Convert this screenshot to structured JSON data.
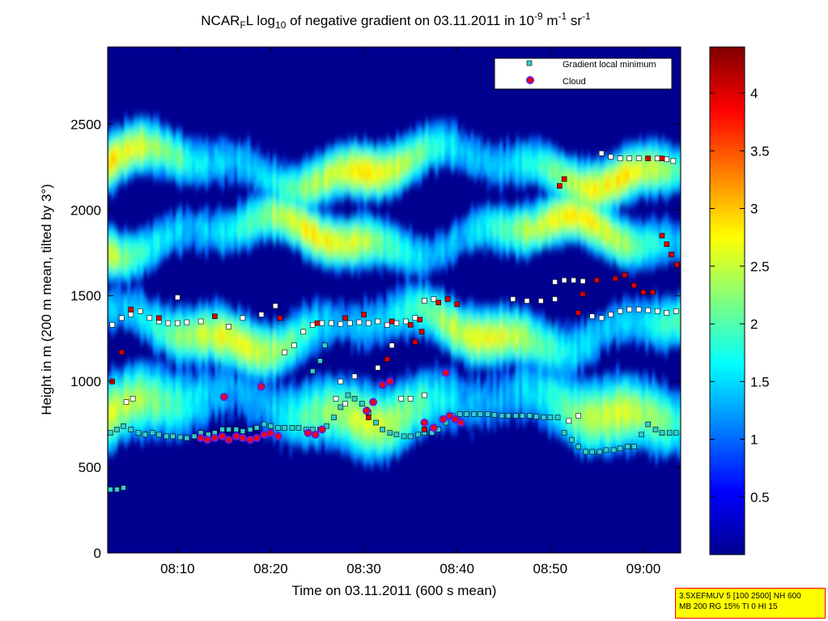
{
  "chart_data": {
    "type": "heatmap",
    "title": {
      "parts": [
        {
          "text": "NCAR",
          "style": "normal"
        },
        {
          "text": "F",
          "style": "sub"
        },
        {
          "text": "L log",
          "style": "normal"
        },
        {
          "text": "10",
          "style": "sub"
        },
        {
          "text": " of negative gradient on 03.11.2011 in 10",
          "style": "normal"
        },
        {
          "text": "-9",
          "style": "sup"
        },
        {
          "text": " m",
          "style": "normal"
        },
        {
          "text": "-1",
          "style": "sup"
        },
        {
          "text": " sr",
          "style": "normal"
        },
        {
          "text": "-1",
          "style": "sup"
        }
      ]
    },
    "xlabel": "Time on 03.11.2011 (600 s mean)",
    "ylabel": "Height in m (200 m mean, tilted by 3°)",
    "x_ticks": [
      {
        "minute": 10,
        "label": "08:10"
      },
      {
        "minute": 20,
        "label": "08:20"
      },
      {
        "minute": 30,
        "label": "08:30"
      },
      {
        "minute": 40,
        "label": "08:40"
      },
      {
        "minute": 50,
        "label": "08:50"
      },
      {
        "minute": 60,
        "label": "09:00"
      }
    ],
    "y_ticks": [
      0,
      500,
      1000,
      1500,
      2000,
      2500
    ],
    "xlim_minutes_after_0800": [
      2.5,
      64
    ],
    "ylim": [
      0,
      2950
    ],
    "colorbar": {
      "ticks": [
        {
          "value": 0.5,
          "label": "0.5"
        },
        {
          "value": 1,
          "label": "1"
        },
        {
          "value": 1.5,
          "label": "1.5"
        },
        {
          "value": 2,
          "label": "2"
        },
        {
          "value": 2.5,
          "label": "2.5"
        },
        {
          "value": 3,
          "label": "3"
        },
        {
          "value": 3.5,
          "label": "3.5"
        },
        {
          "value": 4,
          "label": "4"
        }
      ],
      "range": [
        0,
        4.4
      ],
      "colormap": "jet"
    },
    "legend": {
      "position": "top-right",
      "entries": [
        {
          "label": "Gradient local minimum",
          "marker": "square",
          "color": "#33cccc"
        },
        {
          "label": "Cloud",
          "marker": "circle",
          "color": "#ff0000"
        }
      ]
    },
    "layers": [
      {
        "center": 1850,
        "width": 165,
        "value": 2.55
      },
      {
        "center": 2250,
        "width": 170,
        "value": 2.55
      },
      {
        "center": 1300,
        "width": 185,
        "value": 2.45
      },
      {
        "center": 850,
        "width": 230,
        "value": 2.3
      }
    ],
    "gradient_local_minimum": [
      {
        "x": 2.8,
        "y": 700
      },
      {
        "x": 3.5,
        "y": 720
      },
      {
        "x": 4.2,
        "y": 740
      },
      {
        "x": 5,
        "y": 720
      },
      {
        "x": 5.8,
        "y": 700
      },
      {
        "x": 6.5,
        "y": 690
      },
      {
        "x": 7.3,
        "y": 700
      },
      {
        "x": 8,
        "y": 690
      },
      {
        "x": 8.8,
        "y": 680
      },
      {
        "x": 9.5,
        "y": 680
      },
      {
        "x": 10.3,
        "y": 675
      },
      {
        "x": 11,
        "y": 670
      },
      {
        "x": 11.8,
        "y": 680
      },
      {
        "x": 12.5,
        "y": 700
      },
      {
        "x": 13.3,
        "y": 690
      },
      {
        "x": 14,
        "y": 700
      },
      {
        "x": 14.8,
        "y": 720
      },
      {
        "x": 15.5,
        "y": 720
      },
      {
        "x": 16.3,
        "y": 720
      },
      {
        "x": 17,
        "y": 710
      },
      {
        "x": 17.8,
        "y": 720
      },
      {
        "x": 18.5,
        "y": 730
      },
      {
        "x": 19.3,
        "y": 750
      },
      {
        "x": 20,
        "y": 740
      },
      {
        "x": 20.8,
        "y": 730
      },
      {
        "x": 21.5,
        "y": 730
      },
      {
        "x": 22.3,
        "y": 730
      },
      {
        "x": 23,
        "y": 730
      },
      {
        "x": 23.8,
        "y": 720
      },
      {
        "x": 24.5,
        "y": 720
      },
      {
        "x": 25.3,
        "y": 720
      },
      {
        "x": 26,
        "y": 740
      },
      {
        "x": 26.8,
        "y": 790
      },
      {
        "x": 27.5,
        "y": 850
      },
      {
        "x": 28.3,
        "y": 920
      },
      {
        "x": 29,
        "y": 900
      },
      {
        "x": 29.8,
        "y": 870
      },
      {
        "x": 30.5,
        "y": 820
      },
      {
        "x": 31.3,
        "y": 760
      },
      {
        "x": 32,
        "y": 720
      },
      {
        "x": 32.8,
        "y": 700
      },
      {
        "x": 33.5,
        "y": 690
      },
      {
        "x": 34.3,
        "y": 680
      },
      {
        "x": 35,
        "y": 680
      },
      {
        "x": 35.8,
        "y": 690
      },
      {
        "x": 36.5,
        "y": 700
      },
      {
        "x": 37.3,
        "y": 700
      },
      {
        "x": 38,
        "y": 720
      },
      {
        "x": 38.8,
        "y": 760
      },
      {
        "x": 39.5,
        "y": 800
      },
      {
        "x": 40.3,
        "y": 810
      },
      {
        "x": 41,
        "y": 810
      },
      {
        "x": 41.8,
        "y": 810
      },
      {
        "x": 42.5,
        "y": 810
      },
      {
        "x": 43.3,
        "y": 810
      },
      {
        "x": 44,
        "y": 805
      },
      {
        "x": 44.8,
        "y": 800
      },
      {
        "x": 45.5,
        "y": 800
      },
      {
        "x": 46.3,
        "y": 800
      },
      {
        "x": 47,
        "y": 800
      },
      {
        "x": 47.8,
        "y": 800
      },
      {
        "x": 48.5,
        "y": 795
      },
      {
        "x": 49.3,
        "y": 790
      },
      {
        "x": 50,
        "y": 790
      },
      {
        "x": 50.8,
        "y": 790
      },
      {
        "x": 51.5,
        "y": 700
      },
      {
        "x": 52.3,
        "y": 660
      },
      {
        "x": 53,
        "y": 620
      },
      {
        "x": 53.8,
        "y": 590
      },
      {
        "x": 54.5,
        "y": 590
      },
      {
        "x": 55.3,
        "y": 590
      },
      {
        "x": 56,
        "y": 600
      },
      {
        "x": 56.8,
        "y": 600
      },
      {
        "x": 57.5,
        "y": 610
      },
      {
        "x": 58.3,
        "y": 620
      },
      {
        "x": 59,
        "y": 620
      },
      {
        "x": 59.8,
        "y": 690
      },
      {
        "x": 60.5,
        "y": 750
      },
      {
        "x": 61.3,
        "y": 720
      },
      {
        "x": 62,
        "y": 700
      },
      {
        "x": 62.8,
        "y": 700
      },
      {
        "x": 63.5,
        "y": 700
      },
      {
        "x": 2.8,
        "y": 370
      },
      {
        "x": 3.5,
        "y": 370
      },
      {
        "x": 4.2,
        "y": 380
      },
      {
        "x": 24.5,
        "y": 1060
      },
      {
        "x": 25.3,
        "y": 1120
      },
      {
        "x": 25.8,
        "y": 1210
      }
    ],
    "white_markers": [
      {
        "x": 4.5,
        "y": 880
      },
      {
        "x": 5.2,
        "y": 900
      },
      {
        "x": 3,
        "y": 1330
      },
      {
        "x": 4,
        "y": 1370
      },
      {
        "x": 5,
        "y": 1390
      },
      {
        "x": 6,
        "y": 1410
      },
      {
        "x": 7,
        "y": 1370
      },
      {
        "x": 8,
        "y": 1350
      },
      {
        "x": 9,
        "y": 1340
      },
      {
        "x": 10,
        "y": 1340
      },
      {
        "x": 11,
        "y": 1345
      },
      {
        "x": 12.5,
        "y": 1350
      },
      {
        "x": 15.5,
        "y": 1320
      },
      {
        "x": 17,
        "y": 1370
      },
      {
        "x": 19,
        "y": 1390
      },
      {
        "x": 20.5,
        "y": 1440
      },
      {
        "x": 21.5,
        "y": 1170
      },
      {
        "x": 22.5,
        "y": 1210
      },
      {
        "x": 23.5,
        "y": 1290
      },
      {
        "x": 24.5,
        "y": 1330
      },
      {
        "x": 25.5,
        "y": 1340
      },
      {
        "x": 26.5,
        "y": 1340
      },
      {
        "x": 27.5,
        "y": 1335
      },
      {
        "x": 28.5,
        "y": 1340
      },
      {
        "x": 29.5,
        "y": 1345
      },
      {
        "x": 30.5,
        "y": 1340
      },
      {
        "x": 31.5,
        "y": 1350
      },
      {
        "x": 32.5,
        "y": 1330
      },
      {
        "x": 33.5,
        "y": 1340
      },
      {
        "x": 34.5,
        "y": 1350
      },
      {
        "x": 35.5,
        "y": 1370
      },
      {
        "x": 36.5,
        "y": 1470
      },
      {
        "x": 37.5,
        "y": 1480
      },
      {
        "x": 27,
        "y": 900
      },
      {
        "x": 28,
        "y": 870
      },
      {
        "x": 34,
        "y": 900
      },
      {
        "x": 35,
        "y": 900
      },
      {
        "x": 36.5,
        "y": 920
      },
      {
        "x": 31.5,
        "y": 1080
      },
      {
        "x": 33,
        "y": 1210
      },
      {
        "x": 46,
        "y": 1480
      },
      {
        "x": 47.5,
        "y": 1470
      },
      {
        "x": 49,
        "y": 1470
      },
      {
        "x": 50.5,
        "y": 1480
      },
      {
        "x": 50.5,
        "y": 1580
      },
      {
        "x": 51.5,
        "y": 1590
      },
      {
        "x": 52.5,
        "y": 1590
      },
      {
        "x": 53.5,
        "y": 1585
      },
      {
        "x": 54.5,
        "y": 1380
      },
      {
        "x": 55.5,
        "y": 1370
      },
      {
        "x": 56.5,
        "y": 1390
      },
      {
        "x": 57.5,
        "y": 1410
      },
      {
        "x": 58.5,
        "y": 1420
      },
      {
        "x": 59.5,
        "y": 1420
      },
      {
        "x": 60.5,
        "y": 1415
      },
      {
        "x": 61.5,
        "y": 1410
      },
      {
        "x": 62.5,
        "y": 1400
      },
      {
        "x": 63.5,
        "y": 1410
      },
      {
        "x": 55.5,
        "y": 2330
      },
      {
        "x": 56.5,
        "y": 2310
      },
      {
        "x": 57.5,
        "y": 2300
      },
      {
        "x": 58.5,
        "y": 2300
      },
      {
        "x": 59.5,
        "y": 2300
      },
      {
        "x": 60.5,
        "y": 2300
      },
      {
        "x": 61.5,
        "y": 2300
      },
      {
        "x": 62.5,
        "y": 2295
      },
      {
        "x": 63.2,
        "y": 2285
      },
      {
        "x": 10,
        "y": 1490
      },
      {
        "x": 52,
        "y": 770
      },
      {
        "x": 53,
        "y": 800
      },
      {
        "x": 27.5,
        "y": 1000
      },
      {
        "x": 29,
        "y": 1030
      }
    ],
    "red_markers": [
      {
        "x": 3,
        "y": 1000
      },
      {
        "x": 4,
        "y": 1170
      },
      {
        "x": 5,
        "y": 1420
      },
      {
        "x": 8,
        "y": 1370
      },
      {
        "x": 14,
        "y": 1380
      },
      {
        "x": 21,
        "y": 1370
      },
      {
        "x": 25,
        "y": 1340
      },
      {
        "x": 28,
        "y": 1370
      },
      {
        "x": 30,
        "y": 1390
      },
      {
        "x": 33,
        "y": 1350
      },
      {
        "x": 35,
        "y": 1330
      },
      {
        "x": 36,
        "y": 1360
      },
      {
        "x": 38,
        "y": 1460
      },
      {
        "x": 39,
        "y": 1480
      },
      {
        "x": 40,
        "y": 1450
      },
      {
        "x": 32.5,
        "y": 1130
      },
      {
        "x": 35.5,
        "y": 1230
      },
      {
        "x": 36.2,
        "y": 1290
      },
      {
        "x": 51,
        "y": 2140
      },
      {
        "x": 51.5,
        "y": 2180
      },
      {
        "x": 53,
        "y": 1400
      },
      {
        "x": 53.5,
        "y": 1510
      },
      {
        "x": 55,
        "y": 1590
      },
      {
        "x": 57,
        "y": 1600
      },
      {
        "x": 58,
        "y": 1620
      },
      {
        "x": 59,
        "y": 1560
      },
      {
        "x": 60,
        "y": 1520
      },
      {
        "x": 61,
        "y": 1520
      },
      {
        "x": 62,
        "y": 1850
      },
      {
        "x": 62.5,
        "y": 1800
      },
      {
        "x": 63,
        "y": 1740
      },
      {
        "x": 63.6,
        "y": 1680
      },
      {
        "x": 60.5,
        "y": 2300
      },
      {
        "x": 62,
        "y": 2300
      },
      {
        "x": 30.5,
        "y": 790
      },
      {
        "x": 36.5,
        "y": 720
      }
    ],
    "cloud_markers": [
      {
        "x": 12.5,
        "y": 670
      },
      {
        "x": 13.2,
        "y": 660
      },
      {
        "x": 14,
        "y": 670
      },
      {
        "x": 14.8,
        "y": 680
      },
      {
        "x": 15.5,
        "y": 660
      },
      {
        "x": 16.3,
        "y": 680
      },
      {
        "x": 17,
        "y": 670
      },
      {
        "x": 17.8,
        "y": 660
      },
      {
        "x": 18.5,
        "y": 670
      },
      {
        "x": 19.3,
        "y": 690
      },
      {
        "x": 20,
        "y": 700
      },
      {
        "x": 20.8,
        "y": 680
      },
      {
        "x": 15,
        "y": 910
      },
      {
        "x": 19,
        "y": 970
      },
      {
        "x": 24,
        "y": 700
      },
      {
        "x": 24.8,
        "y": 690
      },
      {
        "x": 25.5,
        "y": 720
      },
      {
        "x": 30.3,
        "y": 830
      },
      {
        "x": 31,
        "y": 880
      },
      {
        "x": 32,
        "y": 980
      },
      {
        "x": 32.8,
        "y": 1000
      },
      {
        "x": 36.5,
        "y": 760
      },
      {
        "x": 37.5,
        "y": 730
      },
      {
        "x": 38.5,
        "y": 780
      },
      {
        "x": 39.2,
        "y": 800
      },
      {
        "x": 39.8,
        "y": 780
      },
      {
        "x": 40.4,
        "y": 760
      },
      {
        "x": 38.8,
        "y": 1050
      }
    ]
  },
  "stamp": {
    "line1": "3.5XEFMUV 5 [100 2500] NH 600",
    "line2": "MB 200 RG 15% TI 0 HI 15"
  }
}
